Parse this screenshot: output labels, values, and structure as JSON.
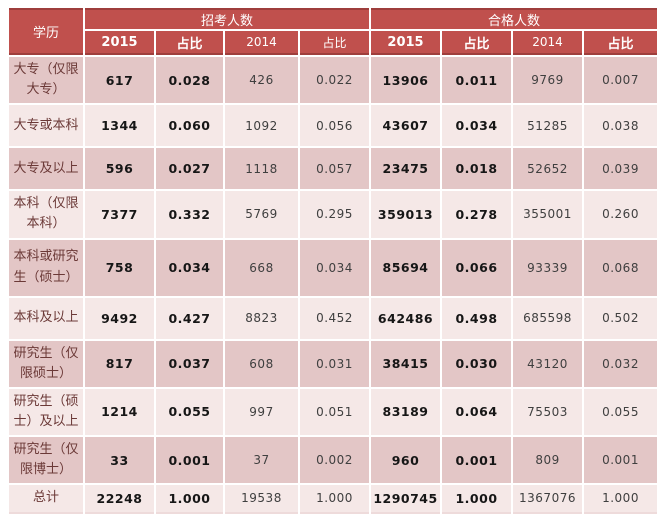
{
  "header": {
    "education_label": "学历",
    "recruit_label": "招考人数",
    "qualified_label": "合格人数",
    "subcolumns": [
      {
        "label": "2015",
        "bold": true
      },
      {
        "label": "占比",
        "bold": true
      },
      {
        "label": "2014",
        "bold": false
      },
      {
        "label": "占比",
        "bold": false
      },
      {
        "label": "2015",
        "bold": true
      },
      {
        "label": "占比",
        "bold": true
      },
      {
        "label": "2014",
        "bold": false
      },
      {
        "label": "占比",
        "bold": true
      }
    ]
  },
  "rows": [
    {
      "label": "大专（仅限大专）",
      "values": [
        "617",
        "0.028",
        "426",
        "0.022",
        "13906",
        "0.011",
        "9769",
        "0.007"
      ],
      "tall": false,
      "total": false
    },
    {
      "label": "大专或本科",
      "values": [
        "1344",
        "0.060",
        "1092",
        "0.056",
        "43607",
        "0.034",
        "51285",
        "0.038"
      ],
      "tall": false,
      "total": false
    },
    {
      "label": "大专及以上",
      "values": [
        "596",
        "0.027",
        "1118",
        "0.057",
        "23475",
        "0.018",
        "52652",
        "0.039"
      ],
      "tall": false,
      "total": false
    },
    {
      "label": "本科（仅限本科）",
      "values": [
        "7377",
        "0.332",
        "5769",
        "0.295",
        "359013",
        "0.278",
        "355001",
        "0.260"
      ],
      "tall": false,
      "total": false
    },
    {
      "label": "本科或研究生（硕士）",
      "values": [
        "758",
        "0.034",
        "668",
        "0.034",
        "85694",
        "0.066",
        "93339",
        "0.068"
      ],
      "tall": true,
      "total": false
    },
    {
      "label": "本科及以上",
      "values": [
        "9492",
        "0.427",
        "8823",
        "0.452",
        "642486",
        "0.498",
        "685598",
        "0.502"
      ],
      "tall": false,
      "total": false
    },
    {
      "label": "研究生（仅限硕士）",
      "values": [
        "817",
        "0.037",
        "608",
        "0.031",
        "38415",
        "0.030",
        "43120",
        "0.032"
      ],
      "tall": false,
      "total": false
    },
    {
      "label": "研究生（硕士）及以上",
      "values": [
        "1214",
        "0.055",
        "997",
        "0.051",
        "83189",
        "0.064",
        "75503",
        "0.055"
      ],
      "tall": false,
      "total": false
    },
    {
      "label": "研究生（仅限博士）",
      "values": [
        "33",
        "0.001",
        "37",
        "0.002",
        "960",
        "0.001",
        "809",
        "0.001"
      ],
      "tall": false,
      "total": false
    },
    {
      "label": "总计",
      "values": [
        "22248",
        "1.000",
        "19538",
        "1.000",
        "1290745",
        "1.000",
        "1367076",
        "1.000"
      ],
      "tall": false,
      "total": true
    }
  ],
  "colors": {
    "header_bg": "#C0504D",
    "border_dark": "#9E3E3C",
    "band_dark": "#E3C6C6",
    "band_light": "#F5E8E7",
    "last_column_bg": "#E1C2C2",
    "label_text": "#6B3937",
    "bold_number_text": "#161616",
    "gray_number_text": "#3F3F3F"
  }
}
